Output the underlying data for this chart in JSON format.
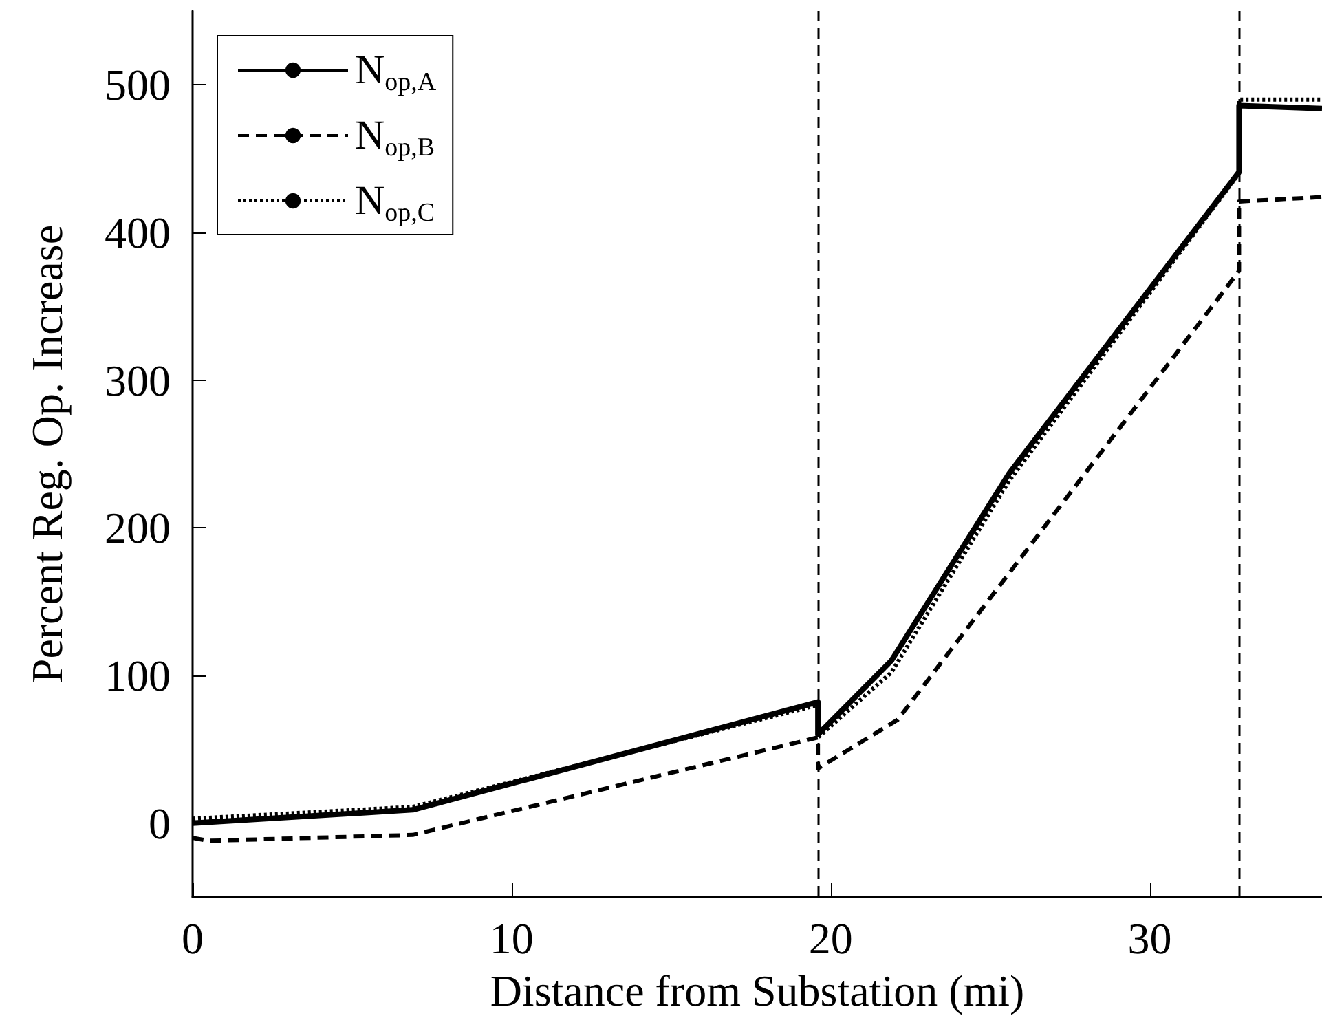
{
  "chart_data": {
    "type": "line",
    "xlabel": "Distance from Substation (mi)",
    "ylabel": "Percent Reg. Op. Increase",
    "xlim": [
      0,
      35.4
    ],
    "xticks": [
      0,
      10,
      20,
      30
    ],
    "ylim": [
      -50,
      550
    ],
    "yticks": [
      0,
      100,
      200,
      300,
      400,
      500
    ],
    "grid": false,
    "legend": "top left",
    "marker": "none",
    "series": [
      {
        "name": "N$_{op,A}$",
        "color": "#000000",
        "line_style": "solid",
        "x": [
          0,
          6.9,
          19.6,
          19.6,
          21.9,
          25.6,
          32.8,
          32.8,
          35.4
        ],
        "values": [
          0,
          9,
          82,
          60,
          110,
          237,
          441,
          486,
          484
        ]
      },
      {
        "name": "N$_{op,B}$",
        "color": "#000000",
        "line_style": "dashed",
        "x": [
          0,
          0.5,
          6.9,
          19.6,
          19.6,
          22.1,
          32.8,
          32.8,
          35.4
        ],
        "values": [
          -10,
          -12,
          -8,
          58,
          37,
          70,
          374,
          421,
          424
        ]
      },
      {
        "name": "N$_{op,C}$",
        "color": "#000000",
        "line_style": "dotted",
        "x": [
          0,
          6.9,
          19.6,
          19.6,
          21.9,
          25.6,
          32.8,
          32.8,
          35.4
        ],
        "values": [
          3,
          11,
          80,
          58,
          102,
          232,
          440,
          490,
          490
        ]
      }
    ],
    "ref_lines": [
      {
        "axis": "x",
        "value": 19.6,
        "color": "#000000",
        "line_style": "dashed"
      },
      {
        "axis": "x",
        "value": 32.8,
        "color": "#000000",
        "line_style": "dashed"
      }
    ]
  }
}
